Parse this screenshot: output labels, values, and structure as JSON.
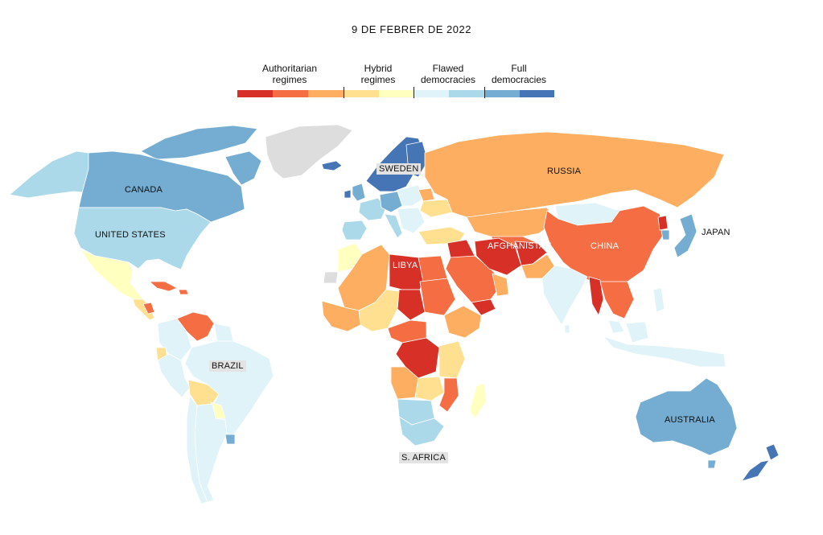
{
  "header": {
    "date": "9 DE FEBRER DE 2022"
  },
  "legend": {
    "categories": [
      {
        "label": "Authoritarian\nregimes",
        "colors": [
          "#d73027",
          "#f46d43",
          "#fdae61"
        ]
      },
      {
        "label": "Hybrid\nregimes",
        "colors": [
          "#fee090",
          "#ffffbf"
        ]
      },
      {
        "label": "Flawed\ndemocracies",
        "colors": [
          "#e0f3f8",
          "#abd9e9"
        ]
      },
      {
        "label": "Full\ndemocracies",
        "colors": [
          "#74add1",
          "#4575b4"
        ]
      }
    ]
  },
  "colors": {
    "no_data": "#dddddd",
    "auth1": "#d73027",
    "auth2": "#f46d43",
    "auth3": "#fdae61",
    "hyb1": "#fee090",
    "hyb2": "#ffffbf",
    "flaw1": "#e0f3f8",
    "flaw2": "#abd9e9",
    "full1": "#74add1",
    "full2": "#4575b4"
  },
  "countries": {
    "canada": "CANADA",
    "united_states": "UNITED STATES",
    "brazil": "BRAZIL",
    "sweden": "SWEDEN",
    "russia": "RUSSIA",
    "libya": "LIBYA",
    "afghanistan": "AFGHANISTAN",
    "china": "CHINA",
    "japan": "JAPAN",
    "australia": "AUSTRALIA",
    "south_africa": "S. AFRICA"
  }
}
